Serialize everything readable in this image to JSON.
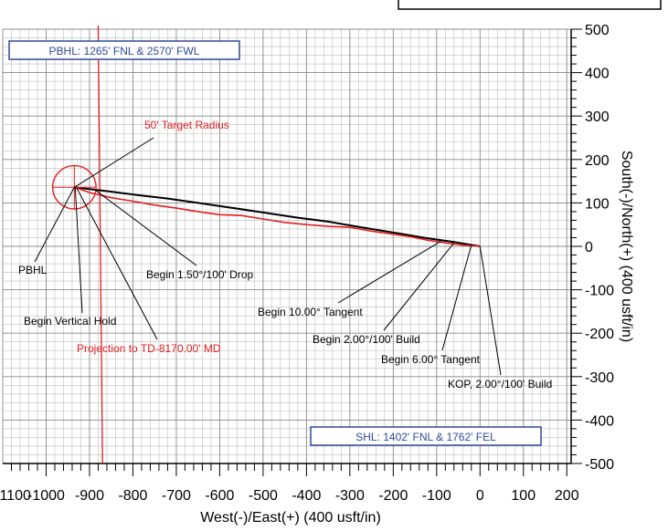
{
  "chart_data": {
    "type": "line",
    "title": "",
    "xlabel": "West(-)/East(+) (400 usft/in)",
    "ylabel": "South(-)/North(+) (400 usft/in)",
    "xlim": [
      -1100,
      210
    ],
    "ylim": [
      -500,
      500
    ],
    "xticks": [
      -1100,
      -1000,
      -900,
      -800,
      -700,
      -600,
      -500,
      -400,
      -300,
      -200,
      -100,
      0,
      100,
      200
    ],
    "xtick_labels": [
      "-1100",
      "-1000",
      "-900",
      "-800",
      "-700",
      "-600",
      "-500",
      "-400",
      "-300",
      "-200",
      "-100",
      "0",
      "100",
      "200"
    ],
    "yticks": [
      500,
      400,
      300,
      200,
      100,
      0,
      -100,
      -200,
      -300,
      -400,
      -500
    ],
    "ytick_labels": [
      "500",
      "400",
      "300",
      "200",
      "100",
      "0",
      "-100",
      "-200",
      "-300",
      "-400",
      "-500"
    ],
    "grid": true,
    "colors": {
      "plan": "#000000",
      "actual": "#e41e1e",
      "box": "#2e4a99",
      "grid": "#bdbdbd"
    },
    "series": [
      {
        "key": "plan",
        "x": [
          0,
          -60,
          -130,
          -200,
          -280,
          -350,
          -420,
          -500,
          -580,
          -650,
          -720,
          -790,
          -860,
          -900,
          -935
        ],
        "y": [
          0,
          10,
          20,
          32,
          45,
          57,
          66,
          78,
          90,
          100,
          110,
          118,
          127,
          132,
          136
        ]
      },
      {
        "key": "actual",
        "x": [
          0,
          -40,
          -80,
          -120,
          -160,
          -200,
          -250,
          -300,
          -350,
          -400,
          -450,
          -500,
          -550,
          -600,
          -650,
          -700,
          -750,
          -800,
          -850,
          -900,
          -935
        ],
        "y": [
          0,
          3,
          8,
          14,
          22,
          28,
          35,
          44,
          46,
          50,
          55,
          63,
          71,
          73,
          80,
          88,
          95,
          104,
          112,
          124,
          136
        ]
      }
    ],
    "target": {
      "cx": -935,
      "cy": 136,
      "r": 50,
      "label": "50' Target Radius"
    },
    "projection_line": {
      "x_top": -880,
      "x_bottom": -870
    },
    "boxes": [
      {
        "key": "pbhl",
        "text": "PBHL: 1265' FNL & 2570' FWL"
      },
      {
        "key": "shl",
        "text": "SHL: 1402' FNL & 1762' FEL"
      }
    ],
    "annotations": [
      {
        "key": "target-radius",
        "text": "50' Target Radius",
        "color": "red",
        "px": -935,
        "py": 136
      },
      {
        "key": "pbhl",
        "text": "PBHL",
        "color": "black",
        "px": -935,
        "py": 136
      },
      {
        "key": "begin-vertical-hold",
        "text": "Begin Vertical Hold",
        "color": "black",
        "px": -933,
        "py": 136
      },
      {
        "key": "projection-td",
        "text": "Projection to TD-8170.00' MD",
        "color": "red",
        "px": -930,
        "py": 135
      },
      {
        "key": "begin-drop",
        "text": "Begin 1.50°/100' Drop",
        "color": "black",
        "px": -890,
        "py": 132
      },
      {
        "key": "begin-10-tangent",
        "text": "Begin 10.00° Tangent",
        "color": "black",
        "px": -90,
        "py": 12
      },
      {
        "key": "begin-2-build",
        "text": "Begin 2.00°/100' Build",
        "color": "black",
        "px": -60,
        "py": 8
      },
      {
        "key": "begin-6-tangent",
        "text": "Begin 6.00° Tangent",
        "color": "black",
        "px": -20,
        "py": 3
      },
      {
        "key": "kop",
        "text": "KOP, 2.00°/100' Build",
        "color": "black",
        "px": 0,
        "py": 0
      }
    ]
  }
}
